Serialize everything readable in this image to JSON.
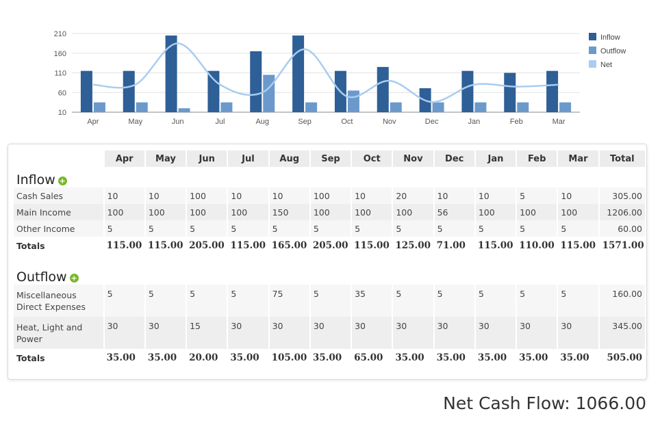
{
  "chart_data": {
    "type": "bar",
    "categories": [
      "Apr",
      "May",
      "Jun",
      "Jul",
      "Aug",
      "Sep",
      "Oct",
      "Nov",
      "Dec",
      "Jan",
      "Feb",
      "Mar"
    ],
    "series": [
      {
        "name": "Inflow",
        "type": "bar",
        "color": "#2e5f96",
        "values": [
          115,
          115,
          205,
          115,
          165,
          205,
          115,
          125,
          71,
          115,
          110,
          115
        ]
      },
      {
        "name": "Outflow",
        "type": "bar",
        "color": "#6b99cc",
        "values": [
          35,
          35,
          20,
          35,
          105,
          35,
          65,
          35,
          35,
          35,
          35,
          35
        ]
      },
      {
        "name": "Net",
        "type": "line",
        "color": "#a8cdf0",
        "values": [
          80,
          80,
          185,
          80,
          60,
          170,
          50,
          90,
          36,
          80,
          75,
          80
        ]
      }
    ],
    "yticks": [
      210,
      160,
      110,
      60,
      10
    ],
    "ylim": [
      10,
      210
    ],
    "legend": "right",
    "grid": true
  },
  "table": {
    "months": [
      "Apr",
      "May",
      "Jun",
      "Jul",
      "Aug",
      "Sep",
      "Oct",
      "Nov",
      "Dec",
      "Jan",
      "Feb",
      "Mar"
    ],
    "total_header": "Total",
    "inflow": {
      "title": "Inflow",
      "rows": [
        {
          "label": "Cash Sales",
          "values": [
            "10",
            "10",
            "100",
            "10",
            "10",
            "100",
            "10",
            "20",
            "10",
            "10",
            "5",
            "10"
          ],
          "total": "305.00"
        },
        {
          "label": "Main Income",
          "values": [
            "100",
            "100",
            "100",
            "100",
            "150",
            "100",
            "100",
            "100",
            "56",
            "100",
            "100",
            "100"
          ],
          "total": "1206.00"
        },
        {
          "label": "Other Income",
          "values": [
            "5",
            "5",
            "5",
            "5",
            "5",
            "5",
            "5",
            "5",
            "5",
            "5",
            "5",
            "5"
          ],
          "total": "60.00"
        }
      ],
      "totals_label": "Totals",
      "totals": [
        "115.00",
        "115.00",
        "205.00",
        "115.00",
        "165.00",
        "205.00",
        "115.00",
        "125.00",
        "71.00",
        "115.00",
        "110.00",
        "115.00"
      ],
      "grand_total": "1571.00"
    },
    "outflow": {
      "title": "Outflow",
      "rows": [
        {
          "label": "Miscellaneous Direct Expenses",
          "values": [
            "5",
            "5",
            "5",
            "5",
            "75",
            "5",
            "35",
            "5",
            "5",
            "5",
            "5",
            "5"
          ],
          "total": "160.00"
        },
        {
          "label": "Heat, Light and Power",
          "values": [
            "30",
            "30",
            "15",
            "30",
            "30",
            "30",
            "30",
            "30",
            "30",
            "30",
            "30",
            "30"
          ],
          "total": "345.00"
        }
      ],
      "totals_label": "Totals",
      "totals": [
        "35.00",
        "35.00",
        "20.00",
        "35.00",
        "105.00",
        "35.00",
        "65.00",
        "35.00",
        "35.00",
        "35.00",
        "35.00",
        "35.00"
      ],
      "grand_total": "505.00"
    }
  },
  "net_cash_flow": "Net Cash Flow: 1066.00",
  "icons": {
    "add": "plus-circle-icon"
  }
}
